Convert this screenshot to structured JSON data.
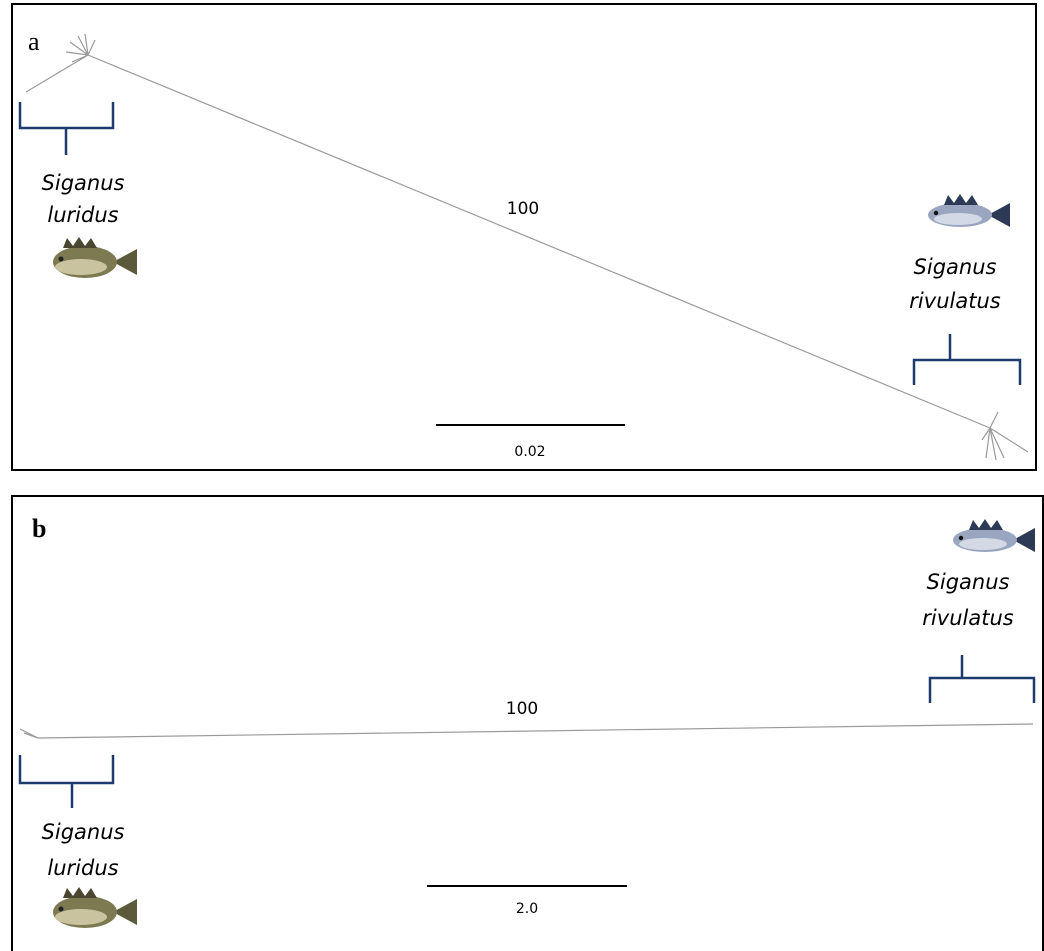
{
  "panels": [
    {
      "label": "a",
      "bootstrap": "100",
      "scale": "0.02",
      "left": {
        "genus": "Siganus",
        "species": "luridus"
      },
      "right": {
        "genus": "Siganus",
        "species": "rivulatus"
      }
    },
    {
      "label": "b",
      "bootstrap": "100",
      "scale": "2.0",
      "left": {
        "genus": "Siganus",
        "species": "luridus"
      },
      "right": {
        "genus": "Siganus",
        "species": "rivulatus"
      }
    }
  ]
}
